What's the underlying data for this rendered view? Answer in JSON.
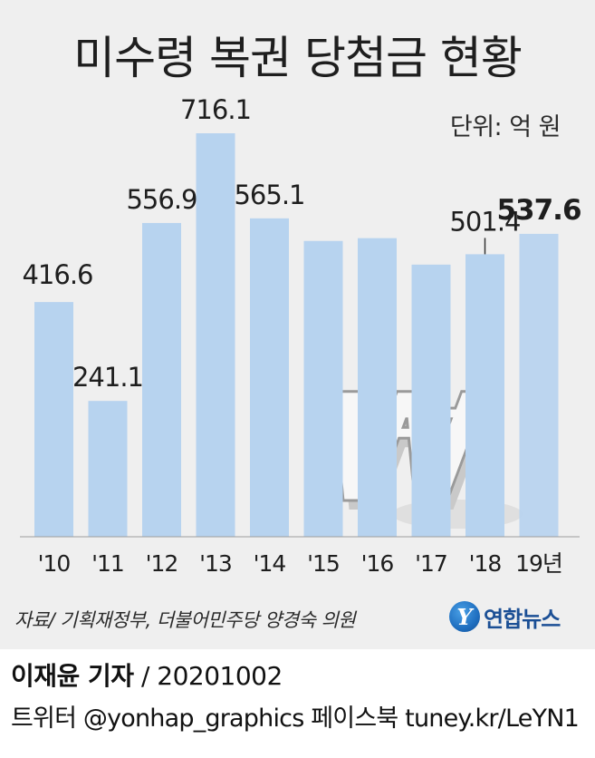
{
  "header": {
    "title": "미수령 복권 당첨금 현황",
    "unit": "단위: 억 원"
  },
  "chart_data": {
    "type": "bar",
    "title": "미수령 복권 당첨금 현황",
    "unit": "단위: 억 원",
    "categories": [
      "'10",
      "'11",
      "'12",
      "'13",
      "'14",
      "'15",
      "'16",
      "'17",
      "'18",
      "19년"
    ],
    "values": [
      416.6,
      241.1,
      556.9,
      716.1,
      565.1,
      525.0,
      530.0,
      483.0,
      501.4,
      537.6
    ],
    "data_labels": [
      "416.6",
      "241.1",
      "556.9",
      "716.1",
      "565.1",
      "",
      "",
      "",
      "501.4",
      "537.6"
    ],
    "highlight_label_index": 9,
    "ylim": [
      0,
      800
    ],
    "grid": false,
    "bar_color": "#b7d3ef"
  },
  "footer": {
    "source": "자료/ 기획재정부, 더불어민주당 양경숙 의원",
    "logo_text": "연합뉴스",
    "logo_mark": "Y",
    "reporter": "이재윤 기자",
    "date": " / 20201002",
    "social": "트위터 @yonhap_graphics  페이스북 tuney.kr/LeYN1"
  }
}
